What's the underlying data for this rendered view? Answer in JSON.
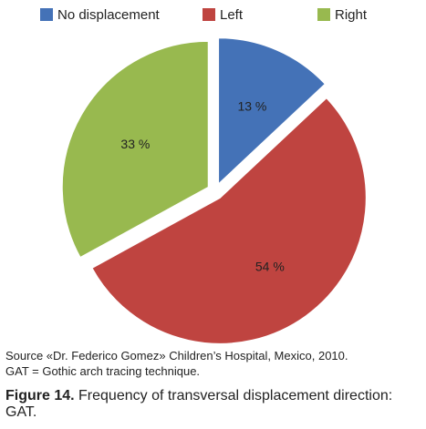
{
  "chart_data": {
    "type": "pie",
    "categories": [
      "No displacement",
      "Left",
      "Right"
    ],
    "values": [
      13,
      54,
      33
    ],
    "value_labels": [
      "13 %",
      "54 %",
      "33 %"
    ],
    "colors": [
      "#4472b7",
      "#bf4440",
      "#98b94f"
    ],
    "legend_position": "top",
    "exploded": true
  },
  "source_line": "Source «Dr. Federico Gomez» Children’s Hospital, Mexico, 2010.",
  "abbrev_line": "GAT = Gothic arch tracing technique.",
  "figure_label": "Figure 14.",
  "figure_text": "Frequency of transversal displacement direction: GAT."
}
